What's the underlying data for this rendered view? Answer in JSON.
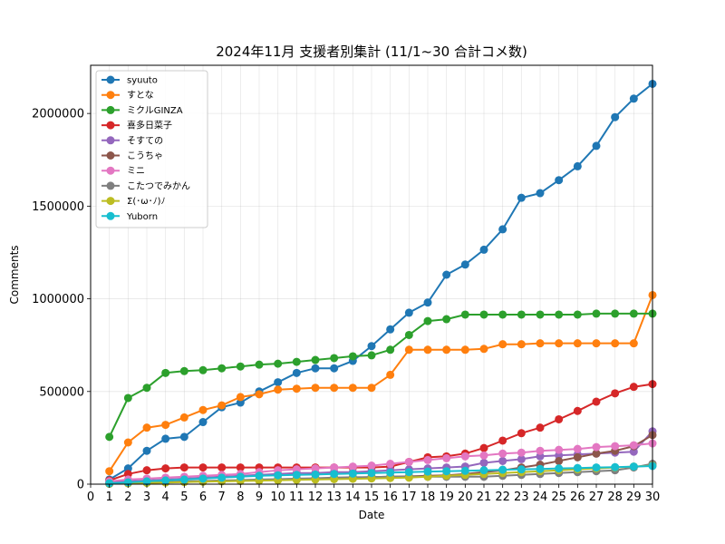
{
  "chart_data": {
    "type": "line",
    "title": "2024年11月 支援者別集計 (11/1~30 合計コメ数)",
    "xlabel": "Date",
    "ylabel": "Comments",
    "xlim": [
      0,
      30
    ],
    "ylim": [
      0,
      2260000
    ],
    "xticks": [
      0,
      1,
      2,
      3,
      4,
      5,
      6,
      7,
      8,
      9,
      10,
      11,
      12,
      13,
      14,
      15,
      16,
      17,
      18,
      19,
      20,
      21,
      22,
      23,
      24,
      25,
      26,
      27,
      28,
      29,
      30
    ],
    "yticks": [
      0,
      500000,
      1000000,
      1500000,
      2000000
    ],
    "grid": true,
    "legend_position": "upper-left",
    "x": [
      1,
      2,
      3,
      4,
      5,
      6,
      7,
      8,
      9,
      10,
      11,
      12,
      13,
      14,
      15,
      16,
      17,
      18,
      19,
      20,
      21,
      22,
      23,
      24,
      25,
      26,
      27,
      28,
      29,
      30
    ],
    "series": [
      {
        "name": "syuuto",
        "color": "#1f77b4",
        "values": [
          25000,
          85000,
          180000,
          245000,
          255000,
          335000,
          415000,
          440000,
          500000,
          550000,
          600000,
          625000,
          625000,
          665000,
          745000,
          835000,
          925000,
          980000,
          1130000,
          1185000,
          1265000,
          1375000,
          1545000,
          1570000,
          1640000,
          1715000,
          1825000,
          1980000,
          2080000,
          2160000
        ]
      },
      {
        "name": "すとな",
        "color": "#ff7f0e",
        "values": [
          70000,
          225000,
          305000,
          320000,
          360000,
          400000,
          425000,
          470000,
          485000,
          510000,
          515000,
          520000,
          520000,
          520000,
          520000,
          590000,
          725000,
          725000,
          725000,
          725000,
          730000,
          755000,
          755000,
          760000,
          760000,
          760000,
          760000,
          760000,
          760000,
          1020000
        ]
      },
      {
        "name": "ミクルGINZA",
        "color": "#2ca02c",
        "values": [
          255000,
          465000,
          520000,
          600000,
          610000,
          615000,
          625000,
          635000,
          645000,
          650000,
          660000,
          670000,
          680000,
          690000,
          695000,
          725000,
          805000,
          880000,
          890000,
          915000,
          915000,
          915000,
          915000,
          915000,
          915000,
          915000,
          920000,
          920000,
          920000,
          920000
        ]
      },
      {
        "name": "喜多日菜子",
        "color": "#d62728",
        "values": [
          20000,
          55000,
          75000,
          85000,
          90000,
          90000,
          90000,
          90000,
          90000,
          90000,
          90000,
          90000,
          90000,
          90000,
          90000,
          95000,
          120000,
          145000,
          150000,
          165000,
          195000,
          235000,
          275000,
          305000,
          350000,
          395000,
          445000,
          490000,
          525000,
          540000
        ]
      },
      {
        "name": "そすての",
        "color": "#9467bd",
        "values": [
          10000,
          15000,
          20000,
          25000,
          30000,
          35000,
          40000,
          45000,
          50000,
          55000,
          60000,
          60000,
          65000,
          65000,
          70000,
          75000,
          80000,
          85000,
          90000,
          95000,
          115000,
          125000,
          135000,
          150000,
          155000,
          160000,
          165000,
          170000,
          175000,
          285000
        ]
      },
      {
        "name": "こうちゃ",
        "color": "#8c564b",
        "values": [
          2000,
          5000,
          8000,
          10000,
          12000,
          15000,
          17000,
          20000,
          22000,
          25000,
          27000,
          30000,
          32000,
          35000,
          38000,
          40000,
          42000,
          45000,
          48000,
          55000,
          65000,
          75000,
          90000,
          105000,
          125000,
          145000,
          165000,
          180000,
          205000,
          265000
        ]
      },
      {
        "name": "ミニ",
        "color": "#e377c2",
        "values": [
          15000,
          25000,
          30000,
          35000,
          40000,
          45000,
          50000,
          55000,
          65000,
          75000,
          80000,
          85000,
          90000,
          95000,
          100000,
          110000,
          120000,
          130000,
          140000,
          150000,
          155000,
          165000,
          170000,
          180000,
          185000,
          190000,
          200000,
          205000,
          210000,
          220000
        ]
      },
      {
        "name": "こたつでみかん",
        "color": "#7f7f7f",
        "values": [
          5000,
          8000,
          10000,
          12000,
          15000,
          17000,
          20000,
          22000,
          25000,
          27000,
          30000,
          32000,
          35000,
          37000,
          38000,
          40000,
          40000,
          40000,
          40000,
          40000,
          40000,
          45000,
          50000,
          55000,
          60000,
          65000,
          70000,
          75000,
          90000,
          110000
        ]
      },
      {
        "name": "Σ(･ω･ﾉ)ﾉ",
        "color": "#bcbd22",
        "values": [
          3000,
          5000,
          7000,
          9000,
          11000,
          13000,
          15000,
          17000,
          19000,
          21000,
          23000,
          25000,
          27000,
          29000,
          31000,
          33000,
          35000,
          40000,
          45000,
          50000,
          55000,
          60000,
          65000,
          70000,
          75000,
          80000,
          85000,
          90000,
          95000,
          100000
        ]
      },
      {
        "name": "Yuborn",
        "color": "#17becf",
        "values": [
          5000,
          10000,
          15000,
          20000,
          25000,
          30000,
          35000,
          40000,
          45000,
          48000,
          50000,
          52000,
          55000,
          57000,
          60000,
          62000,
          65000,
          68000,
          70000,
          72000,
          75000,
          78000,
          80000,
          82000,
          85000,
          87000,
          90000,
          92000,
          95000,
          98000
        ]
      }
    ]
  }
}
